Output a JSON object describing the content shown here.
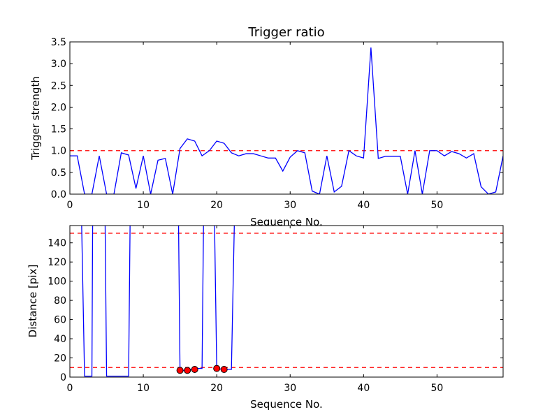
{
  "chart_data": [
    {
      "type": "line",
      "title": "Trigger ratio",
      "xlabel": "Sequence No.",
      "ylabel": "Trigger strength",
      "xlim": [
        0,
        59
      ],
      "ylim": [
        0,
        3.5
      ],
      "xticks": [
        0,
        10,
        20,
        30,
        40,
        50
      ],
      "yticks": [
        "0.0",
        "0.5",
        "1.0",
        "1.5",
        "2.0",
        "2.5",
        "3.0",
        "3.5"
      ],
      "grid": false,
      "threshold_line": {
        "y": 1.0,
        "color": "#ff0000",
        "style": "dashed"
      },
      "series": [
        {
          "color": "#0000ff",
          "x": [
            0,
            1,
            2,
            3,
            4,
            5,
            6,
            7,
            8,
            9,
            10,
            11,
            12,
            13,
            14,
            15,
            16,
            17,
            18,
            19,
            20,
            21,
            22,
            23,
            24,
            25,
            26,
            27,
            28,
            29,
            30,
            31,
            32,
            33,
            34,
            35,
            36,
            37,
            38,
            39,
            40,
            41,
            42,
            43,
            44,
            45,
            46,
            47,
            48,
            49,
            50,
            51,
            52,
            53,
            54,
            55,
            56,
            57,
            58,
            59
          ],
          "values": [
            0.88,
            0.88,
            0.0,
            0.0,
            0.88,
            0.0,
            0.0,
            0.95,
            0.9,
            0.13,
            0.88,
            0.0,
            0.78,
            0.82,
            0.0,
            1.05,
            1.27,
            1.22,
            0.88,
            1.0,
            1.22,
            1.17,
            0.95,
            0.88,
            0.93,
            0.93,
            0.88,
            0.83,
            0.83,
            0.53,
            0.85,
            1.0,
            0.95,
            0.07,
            0.0,
            0.88,
            0.05,
            0.18,
            1.0,
            0.88,
            0.83,
            3.37,
            0.82,
            0.87,
            0.87,
            0.87,
            0.0,
            1.0,
            0.0,
            1.0,
            1.0,
            0.88,
            0.98,
            0.93,
            0.83,
            0.93,
            0.17,
            0.0,
            0.05,
            0.88
          ]
        }
      ]
    },
    {
      "type": "line",
      "title": "",
      "xlabel": "Sequence No.",
      "ylabel": "Distance [pix]",
      "xlim": [
        0,
        59
      ],
      "ylim": [
        0,
        158
      ],
      "xticks": [
        0,
        10,
        20,
        30,
        40,
        50
      ],
      "yticks": [
        0,
        20,
        40,
        60,
        80,
        100,
        120,
        140
      ],
      "grid": false,
      "threshold_lines": [
        {
          "y": 150,
          "color": "#ff0000",
          "style": "dashed"
        },
        {
          "y": 10,
          "color": "#ff0000",
          "style": "dashed"
        }
      ],
      "series": [
        {
          "color": "#0000ff",
          "segments": [
            {
              "x": [
                1.6,
                2,
                3,
                3.1
              ],
              "values": [
                160,
                1,
                1,
                160
              ]
            },
            {
              "x": [
                4.8,
                5,
                8,
                8.2
              ],
              "values": [
                160,
                1,
                1,
                160
              ]
            },
            {
              "x": [
                14.8,
                15,
                16,
                17,
                18,
                18.2
              ],
              "values": [
                160,
                7,
                7,
                9,
                9,
                160
              ]
            },
            {
              "x": [
                19.7,
                20,
                21,
                22,
                22.4
              ],
              "values": [
                160,
                9,
                8,
                8,
                160
              ]
            }
          ]
        },
        {
          "color": "#ff0000",
          "marker": "circle",
          "x": [
            15,
            16,
            17,
            20,
            21
          ],
          "values": [
            7,
            7,
            8,
            9,
            8
          ]
        }
      ]
    }
  ]
}
